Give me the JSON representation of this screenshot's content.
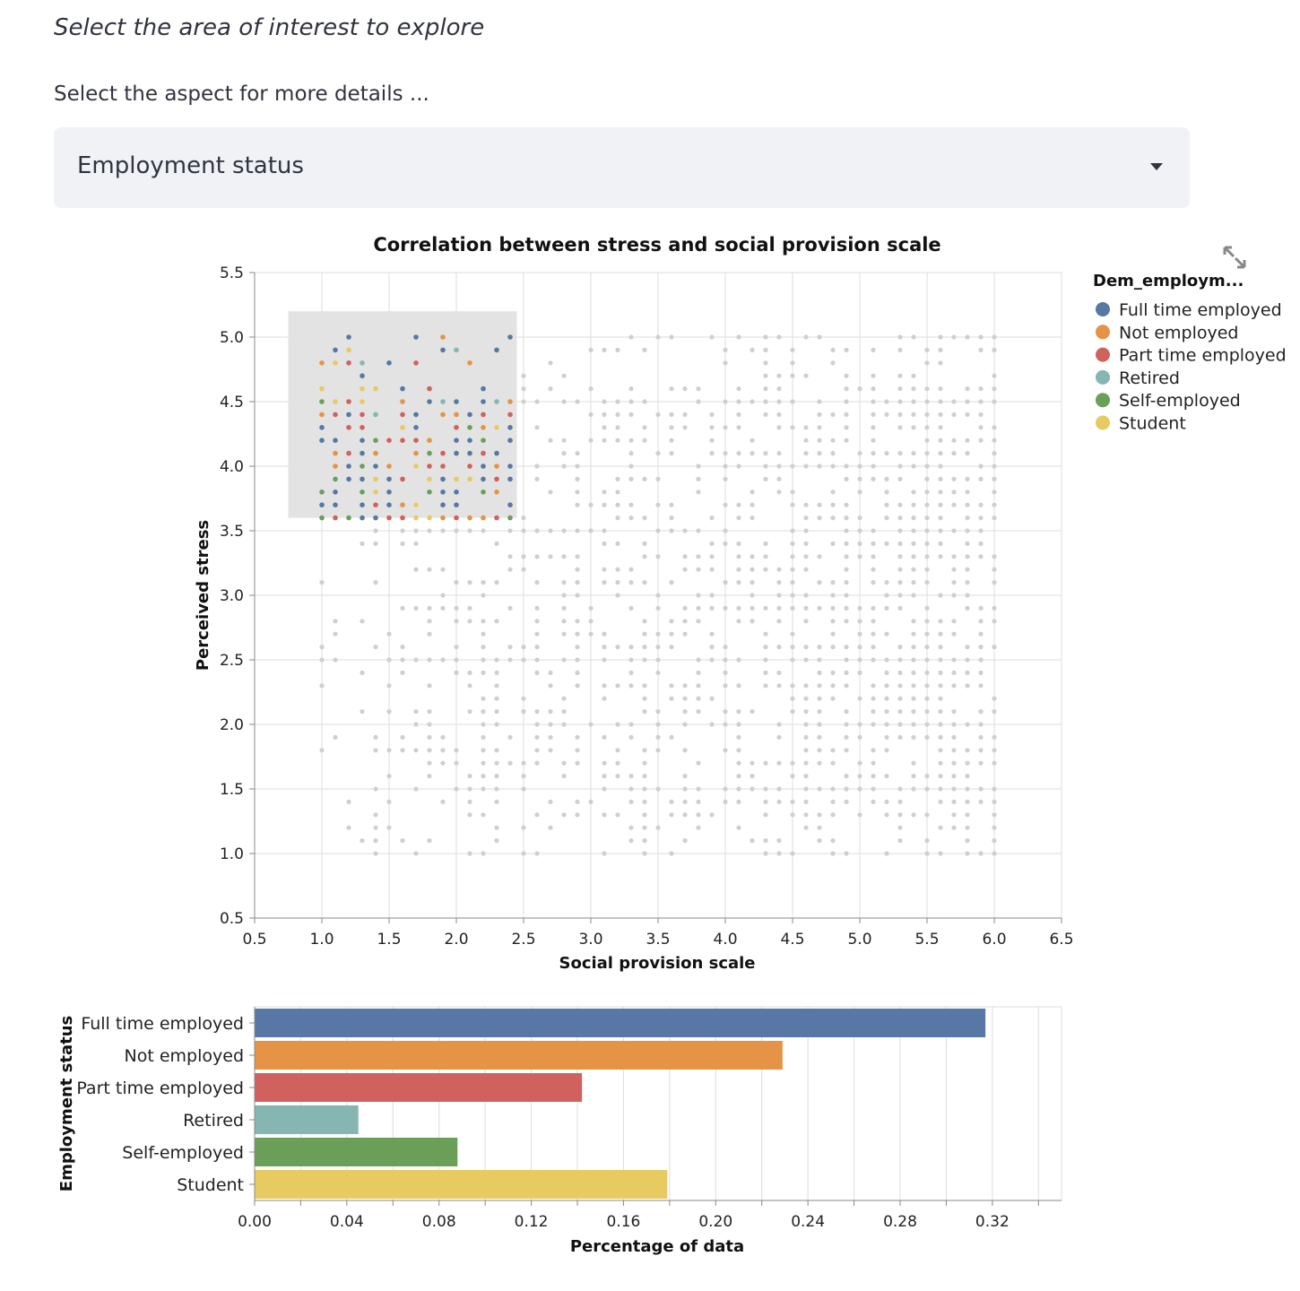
{
  "caption": "Select the area of interest to explore",
  "select": {
    "label": "Select the aspect for more details ...",
    "value": "Employment status"
  },
  "icons": {
    "expand": "expand-icon",
    "dropdown": "chevron-down-icon"
  },
  "colors": {
    "Full time employed": "#5778a4",
    "Not employed": "#e49444",
    "Part time employed": "#d1615d",
    "Retired": "#85b6b2",
    "Self-employed": "#6a9f58",
    "Student": "#e7ca60",
    "unselected": "#cfcfcf",
    "brush": "#e3e3e3"
  },
  "chart_data": [
    {
      "type": "scatter",
      "title": "Correlation between stress and social provision scale",
      "xlabel": "Social provision scale",
      "ylabel": "Perceived stress",
      "xlim": [
        0.5,
        6.5
      ],
      "ylim": [
        0.5,
        5.5
      ],
      "xticks": [
        "0.5",
        "1.0",
        "1.5",
        "2.0",
        "2.5",
        "3.0",
        "3.5",
        "4.0",
        "4.5",
        "5.0",
        "5.5",
        "6.0",
        "6.5"
      ],
      "yticks": [
        "0.5",
        "1.0",
        "1.5",
        "2.0",
        "2.5",
        "3.0",
        "3.5",
        "4.0",
        "4.5",
        "5.0",
        "5.5"
      ],
      "grid": true,
      "legend": {
        "title": "Dem_employm...",
        "position": "right",
        "entries": [
          "Full time employed",
          "Not employed",
          "Part time employed",
          "Retired",
          "Self-employed",
          "Student"
        ]
      },
      "selection": {
        "x": [
          0.75,
          2.45
        ],
        "y": [
          3.6,
          5.2
        ]
      },
      "points_description_grid": {
        "x_range": [
          1.0,
          6.0
        ],
        "y_range": [
          1.0,
          5.0
        ],
        "x_step": 0.1,
        "y_step": 0.1
      }
    },
    {
      "type": "bar",
      "orientation": "horizontal",
      "ylabel": "Employment status",
      "xlabel": "Percentage of data",
      "categories": [
        "Full time employed",
        "Not employed",
        "Part time employed",
        "Retired",
        "Self-employed",
        "Student"
      ],
      "values": [
        0.317,
        0.229,
        0.142,
        0.045,
        0.088,
        0.179
      ],
      "xlim": [
        0,
        0.35
      ],
      "xticks": [
        "0.00",
        "0.04",
        "0.08",
        "0.12",
        "0.16",
        "0.20",
        "0.24",
        "0.28",
        "0.32"
      ],
      "grid": true
    }
  ]
}
